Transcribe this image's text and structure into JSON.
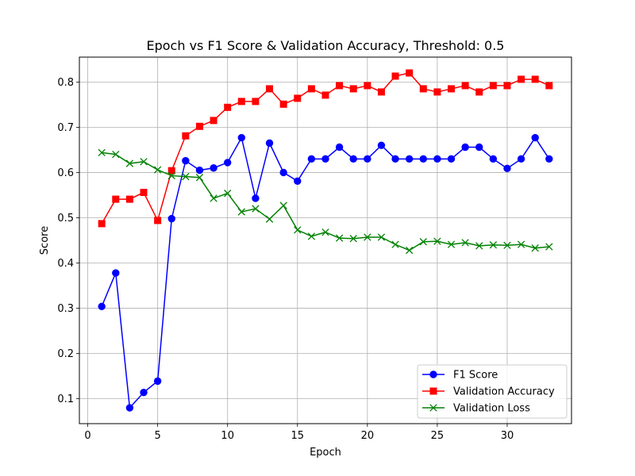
{
  "chart_data": {
    "type": "line",
    "title": "Epoch vs F1 Score & Validation Accuracy, Threshold: 0.5",
    "xlabel": "Epoch",
    "ylabel": "Score",
    "xlim": [
      -0.6,
      34.6
    ],
    "ylim": [
      0.045,
      0.855
    ],
    "x_ticks": [
      0,
      5,
      10,
      15,
      20,
      25,
      30
    ],
    "y_ticks": [
      0.1,
      0.2,
      0.3,
      0.4,
      0.5,
      0.6,
      0.7,
      0.8
    ],
    "x_tick_labels": [
      "0",
      "5",
      "10",
      "15",
      "20",
      "25",
      "30"
    ],
    "y_tick_labels": [
      "0.1",
      "0.2",
      "0.3",
      "0.4",
      "0.5",
      "0.6",
      "0.7",
      "0.8"
    ],
    "grid": true,
    "legend_position": "lower-right",
    "x": [
      1,
      2,
      3,
      4,
      5,
      6,
      7,
      8,
      9,
      10,
      11,
      12,
      13,
      14,
      15,
      16,
      17,
      18,
      19,
      20,
      21,
      22,
      23,
      24,
      25,
      26,
      27,
      28,
      29,
      30,
      31,
      32,
      33
    ],
    "series": [
      {
        "name": "F1 Score",
        "color": "#0000ff",
        "marker": "circle",
        "values": [
          0.304,
          0.378,
          0.08,
          0.114,
          0.139,
          0.498,
          0.626,
          0.605,
          0.61,
          0.622,
          0.677,
          0.543,
          0.665,
          0.6,
          0.581,
          0.63,
          0.63,
          0.656,
          0.63,
          0.63,
          0.66,
          0.63,
          0.63,
          0.63,
          0.63,
          0.63,
          0.656,
          0.656,
          0.63,
          0.609,
          0.63,
          0.677,
          0.63
        ]
      },
      {
        "name": "Validation Accuracy",
        "color": "#ff0000",
        "marker": "square",
        "values": [
          0.487,
          0.541,
          0.541,
          0.556,
          0.494,
          0.604,
          0.681,
          0.702,
          0.715,
          0.744,
          0.757,
          0.757,
          0.785,
          0.751,
          0.764,
          0.785,
          0.771,
          0.792,
          0.785,
          0.792,
          0.778,
          0.813,
          0.82,
          0.785,
          0.778,
          0.785,
          0.792,
          0.778,
          0.792,
          0.792,
          0.806,
          0.806,
          0.792
        ]
      },
      {
        "name": "Validation Loss",
        "color": "#008000",
        "marker": "x",
        "values": [
          0.644,
          0.64,
          0.62,
          0.624,
          0.606,
          0.593,
          0.591,
          0.589,
          0.543,
          0.554,
          0.513,
          0.52,
          0.497,
          0.527,
          0.473,
          0.459,
          0.468,
          0.455,
          0.454,
          0.457,
          0.457,
          0.441,
          0.428,
          0.447,
          0.448,
          0.441,
          0.445,
          0.438,
          0.44,
          0.439,
          0.441,
          0.433,
          0.436
        ]
      }
    ]
  }
}
